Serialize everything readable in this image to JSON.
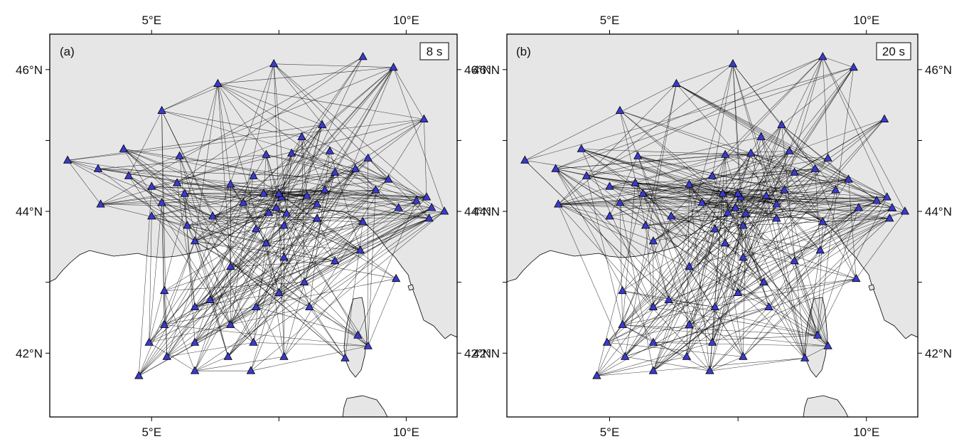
{
  "axes": {
    "lon_labels": [
      "5°E",
      "10°E"
    ],
    "lat_labels": [
      "46°N",
      "44°N",
      "42°N"
    ],
    "lon_ticks": [
      5,
      7.5,
      10
    ],
    "lat_ticks": [
      46,
      45,
      44,
      43,
      42
    ],
    "lon_range": [
      3.0,
      11.0
    ],
    "lat_range": [
      41.1,
      46.5
    ]
  },
  "panels": [
    {
      "letter": "(a)",
      "period": "8 s"
    },
    {
      "letter": "(b)",
      "period": "20 s"
    }
  ],
  "colors": {
    "land": "#e6e6e6",
    "sea": "#ffffff",
    "station": "#3a3ad0",
    "path": "#000000"
  },
  "stations": [
    [
      3.35,
      44.72
    ],
    [
      3.95,
      44.6
    ],
    [
      4.0,
      44.1
    ],
    [
      4.55,
      44.5
    ],
    [
      4.45,
      44.88
    ],
    [
      5.0,
      44.35
    ],
    [
      5.2,
      45.42
    ],
    [
      5.0,
      43.93
    ],
    [
      5.2,
      44.12
    ],
    [
      5.55,
      44.78
    ],
    [
      5.5,
      44.4
    ],
    [
      5.7,
      43.8
    ],
    [
      5.65,
      44.25
    ],
    [
      5.85,
      43.58
    ],
    [
      6.2,
      43.93
    ],
    [
      6.3,
      45.8
    ],
    [
      6.55,
      44.38
    ],
    [
      6.8,
      44.12
    ],
    [
      7.0,
      44.5
    ],
    [
      7.25,
      44.8
    ],
    [
      7.4,
      46.08
    ],
    [
      7.2,
      44.25
    ],
    [
      7.3,
      43.98
    ],
    [
      7.55,
      44.2
    ],
    [
      7.45,
      44.05
    ],
    [
      7.65,
      43.97
    ],
    [
      7.75,
      44.82
    ],
    [
      7.5,
      44.25
    ],
    [
      7.95,
      45.05
    ],
    [
      8.05,
      44.22
    ],
    [
      8.25,
      44.1
    ],
    [
      8.4,
      44.3
    ],
    [
      8.35,
      45.22
    ],
    [
      8.5,
      44.85
    ],
    [
      8.6,
      44.55
    ],
    [
      9.15,
      46.18
    ],
    [
      9.75,
      46.03
    ],
    [
      10.35,
      45.3
    ],
    [
      9.0,
      44.6
    ],
    [
      9.25,
      44.75
    ],
    [
      9.4,
      44.3
    ],
    [
      9.65,
      44.45
    ],
    [
      9.85,
      44.05
    ],
    [
      10.2,
      44.15
    ],
    [
      10.5,
      44.05
    ],
    [
      10.45,
      43.9
    ],
    [
      10.75,
      44.0
    ],
    [
      10.4,
      44.2
    ],
    [
      7.05,
      43.75
    ],
    [
      7.6,
      43.8
    ],
    [
      7.25,
      43.55
    ],
    [
      6.55,
      43.22
    ],
    [
      7.6,
      43.35
    ],
    [
      8.25,
      43.9
    ],
    [
      8.6,
      43.3
    ],
    [
      9.15,
      43.85
    ],
    [
      9.1,
      43.45
    ],
    [
      9.8,
      43.05
    ],
    [
      5.25,
      42.88
    ],
    [
      5.25,
      42.4
    ],
    [
      5.85,
      42.65
    ],
    [
      6.15,
      42.75
    ],
    [
      6.55,
      42.4
    ],
    [
      7.05,
      42.65
    ],
    [
      7.5,
      42.85
    ],
    [
      8.0,
      43.0
    ],
    [
      8.1,
      42.65
    ],
    [
      4.95,
      42.15
    ],
    [
      5.3,
      41.95
    ],
    [
      5.85,
      42.15
    ],
    [
      6.5,
      41.95
    ],
    [
      7.0,
      42.15
    ],
    [
      7.6,
      41.95
    ],
    [
      4.75,
      41.68
    ],
    [
      5.85,
      41.75
    ],
    [
      6.95,
      41.75
    ],
    [
      8.8,
      41.93
    ],
    [
      9.05,
      42.25
    ],
    [
      9.25,
      42.1
    ]
  ]
}
